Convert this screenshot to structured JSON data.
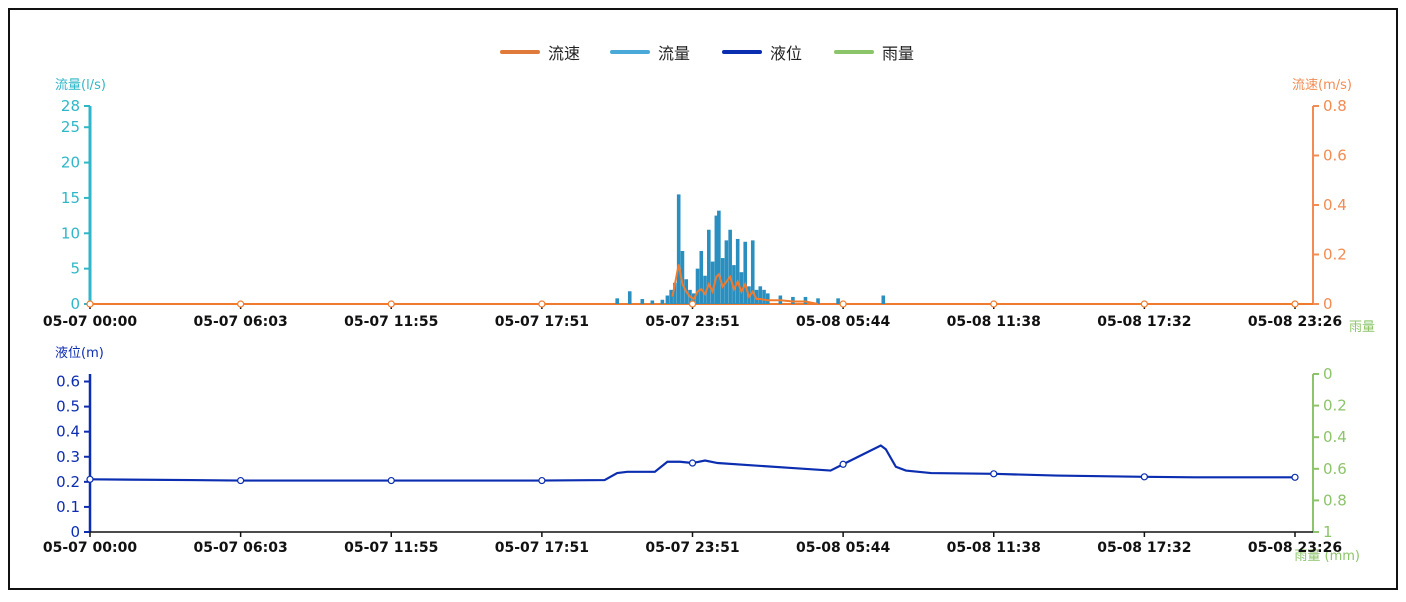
{
  "legend": [
    {
      "name": "流速",
      "color": "#e07a3a"
    },
    {
      "name": "流量",
      "color": "#4aa9d8"
    },
    {
      "name": "液位",
      "color": "#0b2db0"
    },
    {
      "name": "雨量",
      "color": "#8cc46a"
    }
  ],
  "colors": {
    "flow": "#2a8fbf",
    "flow_axis": "#2fb6c8",
    "velocity": "#f07b2e",
    "velocity_axis": "#f28c52",
    "level": "#0b2db0",
    "rain_axis": "#8cc46a"
  },
  "chart_data": [
    {
      "type": "bar",
      "x_tick_labels": [
        "05-07 00:00",
        "05-07 06:03",
        "05-07 11:55",
        "05-07 17:51",
        "05-07 23:51",
        "05-08 05:44",
        "05-08 11:38",
        "05-08 17:32",
        "05-08 23:26"
      ],
      "y_left": {
        "label": "流量(l/s)",
        "ylim": [
          0,
          28
        ],
        "ticks": [
          0,
          5,
          10,
          15,
          20,
          25,
          28
        ]
      },
      "y_right": {
        "label": "流速(m/s)",
        "ylim": [
          0,
          0.8
        ],
        "ticks": [
          0,
          0.2,
          0.4,
          0.6,
          0.8
        ]
      },
      "bottom_right_label": "雨量",
      "series": [
        {
          "name": "流量",
          "points": [
            [
              21.0,
              0.8
            ],
            [
              21.5,
              1.8
            ],
            [
              22.0,
              0.7
            ],
            [
              22.4,
              0.5
            ],
            [
              22.8,
              0.6
            ],
            [
              23.0,
              1.2
            ],
            [
              23.15,
              2.0
            ],
            [
              23.3,
              3.0
            ],
            [
              23.45,
              15.5
            ],
            [
              23.6,
              7.5
            ],
            [
              23.75,
              3.5
            ],
            [
              23.9,
              2.0
            ],
            [
              24.05,
              1.5
            ],
            [
              24.2,
              5.0
            ],
            [
              24.35,
              7.5
            ],
            [
              24.5,
              4.0
            ],
            [
              24.65,
              10.5
            ],
            [
              24.8,
              6.0
            ],
            [
              24.95,
              12.5
            ],
            [
              25.05,
              13.2
            ],
            [
              25.2,
              6.5
            ],
            [
              25.35,
              9.0
            ],
            [
              25.5,
              10.5
            ],
            [
              25.65,
              5.5
            ],
            [
              25.8,
              9.2
            ],
            [
              25.95,
              4.5
            ],
            [
              26.1,
              8.8
            ],
            [
              26.25,
              2.5
            ],
            [
              26.4,
              9.0
            ],
            [
              26.55,
              2.0
            ],
            [
              26.7,
              2.5
            ],
            [
              26.85,
              2.0
            ],
            [
              27.0,
              1.5
            ],
            [
              27.5,
              1.2
            ],
            [
              28.0,
              1.0
            ],
            [
              28.5,
              1.0
            ],
            [
              29.0,
              0.8
            ],
            [
              29.8,
              0.8
            ],
            [
              31.6,
              1.2
            ]
          ]
        },
        {
          "name": "流速",
          "points": [
            [
              23.2,
              0.03
            ],
            [
              23.3,
              0.08
            ],
            [
              23.45,
              0.16
            ],
            [
              23.6,
              0.08
            ],
            [
              23.75,
              0.05
            ],
            [
              23.9,
              0.03
            ],
            [
              24.05,
              0.02
            ],
            [
              24.2,
              0.05
            ],
            [
              24.35,
              0.06
            ],
            [
              24.5,
              0.04
            ],
            [
              24.65,
              0.08
            ],
            [
              24.8,
              0.05
            ],
            [
              24.95,
              0.11
            ],
            [
              25.05,
              0.12
            ],
            [
              25.2,
              0.07
            ],
            [
              25.35,
              0.09
            ],
            [
              25.5,
              0.11
            ],
            [
              25.65,
              0.06
            ],
            [
              25.8,
              0.09
            ],
            [
              25.95,
              0.05
            ],
            [
              26.1,
              0.08
            ],
            [
              26.25,
              0.03
            ],
            [
              26.4,
              0.05
            ],
            [
              26.55,
              0.02
            ],
            [
              26.7,
              0.02
            ],
            [
              27.0,
              0.015
            ],
            [
              27.5,
              0.015
            ],
            [
              28.0,
              0.01
            ],
            [
              28.5,
              0.01
            ],
            [
              29.0,
              0.0
            ]
          ]
        }
      ]
    },
    {
      "type": "line",
      "x_tick_labels": [
        "05-07 00:00",
        "05-07 06:03",
        "05-07 11:55",
        "05-07 17:51",
        "05-07 23:51",
        "05-08 05:44",
        "05-08 11:38",
        "05-08 17:32",
        "05-08 23:26"
      ],
      "y_left": {
        "label": "液位(m)",
        "ylim": [
          0,
          0.63
        ],
        "ticks": [
          0,
          0.1,
          0.2,
          0.3,
          0.4,
          0.5,
          0.6
        ]
      },
      "y_right": {
        "label": "雨量 (mm)",
        "ylim": [
          0,
          1
        ],
        "inverted": true,
        "ticks": [
          0,
          0.2,
          0.4,
          0.6,
          0.8,
          1
        ]
      },
      "series": [
        {
          "name": "液位",
          "points": [
            [
              0,
              0.21
            ],
            [
              4,
              0.207
            ],
            [
              6,
              0.205
            ],
            [
              12,
              0.205
            ],
            [
              17.8,
              0.205
            ],
            [
              20.5,
              0.207
            ],
            [
              21.0,
              0.235
            ],
            [
              21.4,
              0.24
            ],
            [
              22.5,
              0.24
            ],
            [
              23.0,
              0.28
            ],
            [
              23.5,
              0.28
            ],
            [
              24.0,
              0.275
            ],
            [
              24.5,
              0.285
            ],
            [
              25.0,
              0.275
            ],
            [
              26.5,
              0.265
            ],
            [
              28.0,
              0.255
            ],
            [
              29.5,
              0.245
            ],
            [
              30.0,
              0.27
            ],
            [
              31.0,
              0.32
            ],
            [
              31.5,
              0.345
            ],
            [
              31.7,
              0.33
            ],
            [
              32.1,
              0.26
            ],
            [
              32.5,
              0.245
            ],
            [
              33.5,
              0.235
            ],
            [
              36.0,
              0.232
            ],
            [
              38.5,
              0.225
            ],
            [
              42.0,
              0.22
            ],
            [
              44.0,
              0.218
            ],
            [
              48.0,
              0.218
            ]
          ]
        }
      ]
    }
  ]
}
